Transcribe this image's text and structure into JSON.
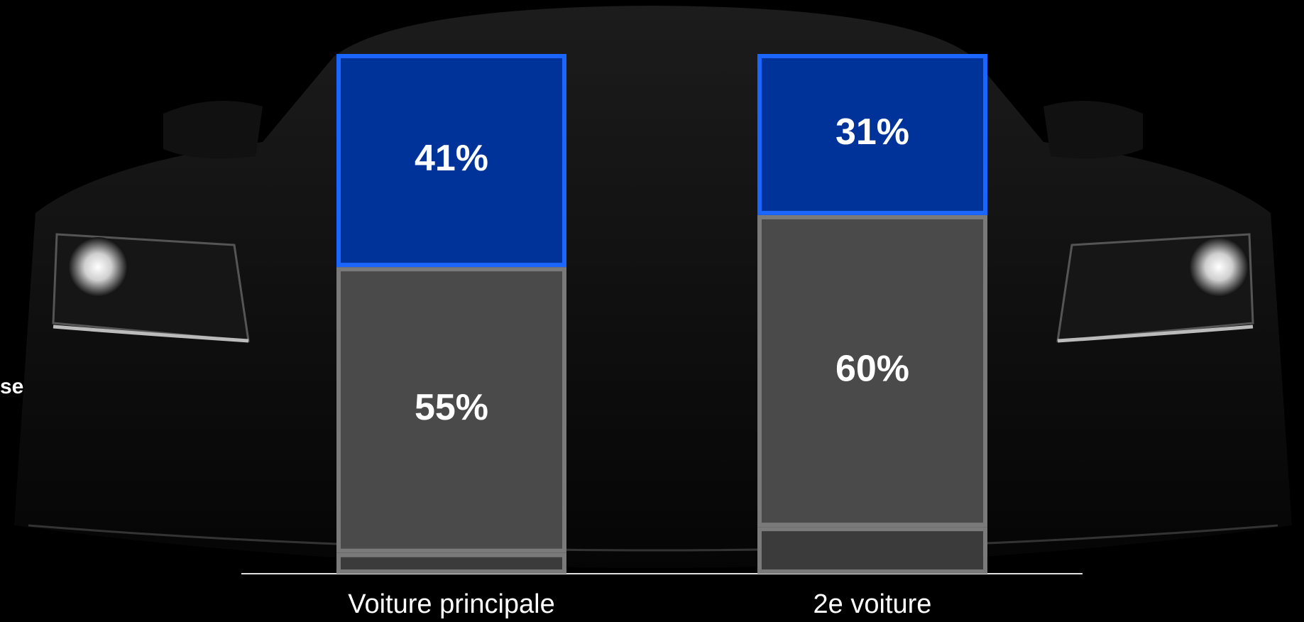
{
  "chart_data": {
    "type": "stacked_bar",
    "categories": [
      "Voiture principale",
      "2e voiture"
    ],
    "ylim": [
      0,
      100
    ],
    "series": [
      {
        "color": "#3b3b3b",
        "values": [
          4,
          9
        ]
      },
      {
        "color": "#4a4a4a",
        "values": [
          55,
          60
        ],
        "value_labels": [
          "55%",
          "60%"
        ]
      },
      {
        "color": "#003399",
        "values": [
          41,
          31
        ],
        "value_labels": [
          "41%",
          "31%"
        ]
      }
    ],
    "annotations": [
      "se"
    ]
  }
}
